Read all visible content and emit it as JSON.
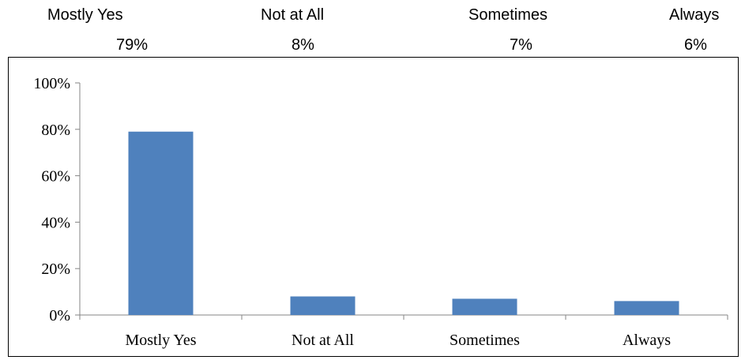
{
  "summary": {
    "categories": [
      "Mostly Yes",
      "Not at All",
      "Sometimes",
      "Always"
    ],
    "percents": [
      "79%",
      "8%",
      "7%",
      "6%"
    ]
  },
  "chart_data": {
    "type": "bar",
    "categories": [
      "Mostly Yes",
      "Not at All",
      "Sometimes",
      "Always"
    ],
    "values": [
      79,
      8,
      7,
      6
    ],
    "title": "",
    "xlabel": "",
    "ylabel": "",
    "ylim": [
      0,
      100
    ],
    "yticks": [
      "0%",
      "20%",
      "40%",
      "60%",
      "80%",
      "100%"
    ],
    "grid": false,
    "legend": "none",
    "bar_color": "#4F81BD"
  }
}
